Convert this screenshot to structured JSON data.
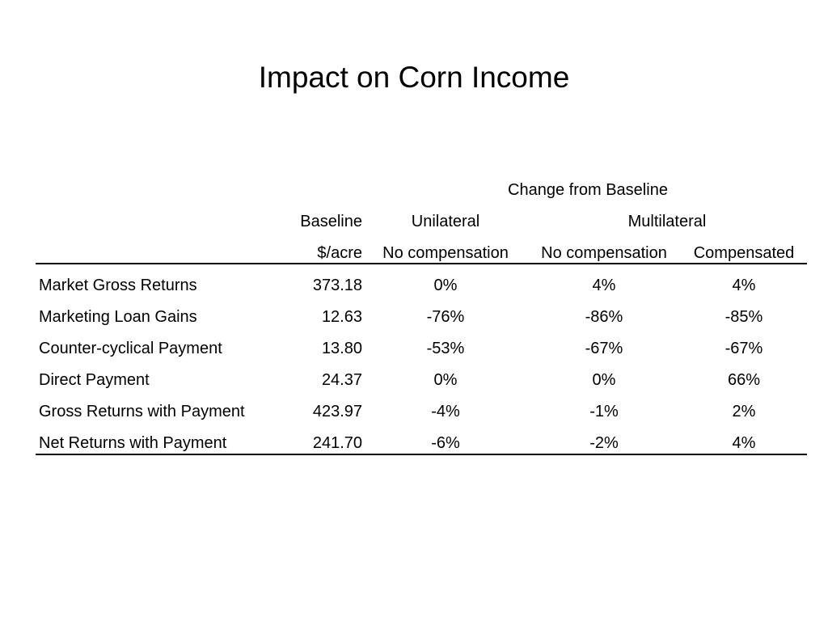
{
  "title": "Impact on Corn Income",
  "table": {
    "header": {
      "group_label": "Change from Baseline",
      "baseline_label": "Baseline",
      "unilateral_label": "Unilateral",
      "multilateral_label": "Multilateral",
      "unit_label": "$/acre",
      "unilateral_sub": "No compensation",
      "multilateral_sub1": "No compensation",
      "multilateral_sub2": "Compensated"
    },
    "rows": [
      {
        "label": "Market Gross Returns",
        "baseline": "373.18",
        "unilateral": "0%",
        "multi_nocomp": "4%",
        "multi_comp": "4%"
      },
      {
        "label": "Marketing Loan Gains",
        "baseline": "12.63",
        "unilateral": "-76%",
        "multi_nocomp": "-86%",
        "multi_comp": "-85%"
      },
      {
        "label": "Counter-cyclical Payment",
        "baseline": "13.80",
        "unilateral": "-53%",
        "multi_nocomp": "-67%",
        "multi_comp": "-67%"
      },
      {
        "label": "Direct Payment",
        "baseline": "24.37",
        "unilateral": "0%",
        "multi_nocomp": "0%",
        "multi_comp": "66%"
      },
      {
        "label": "Gross Returns with Payment",
        "baseline": "423.97",
        "unilateral": "-4%",
        "multi_nocomp": "-1%",
        "multi_comp": "2%"
      },
      {
        "label": "Net Returns with Payment",
        "baseline": "241.70",
        "unilateral": "-6%",
        "multi_nocomp": "-2%",
        "multi_comp": "4%"
      }
    ]
  }
}
